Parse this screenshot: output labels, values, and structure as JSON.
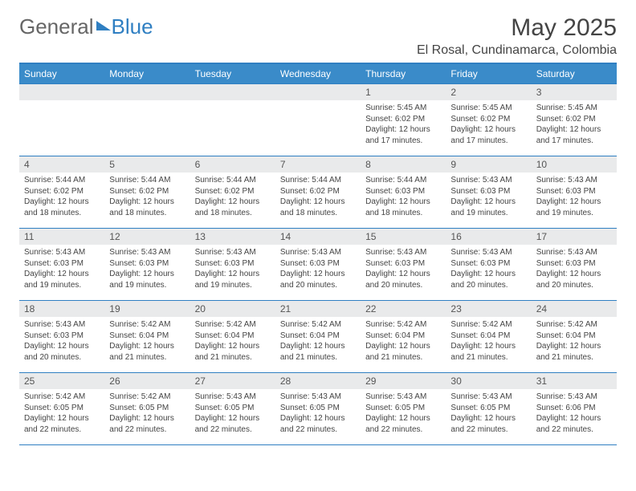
{
  "brand": {
    "part1": "General",
    "part2": "Blue"
  },
  "title": "May 2025",
  "location": "El Rosal, Cundinamarca, Colombia",
  "colors": {
    "header_bg": "#3a8bc9",
    "header_rule": "#2f7fc2",
    "daynum_bg": "#e9eaeb",
    "text": "#444444"
  },
  "weekdays": [
    "Sunday",
    "Monday",
    "Tuesday",
    "Wednesday",
    "Thursday",
    "Friday",
    "Saturday"
  ],
  "weeks": [
    [
      null,
      null,
      null,
      null,
      {
        "n": "1",
        "sr": "5:45 AM",
        "ss": "6:02 PM",
        "dl": "12 hours and 17 minutes."
      },
      {
        "n": "2",
        "sr": "5:45 AM",
        "ss": "6:02 PM",
        "dl": "12 hours and 17 minutes."
      },
      {
        "n": "3",
        "sr": "5:45 AM",
        "ss": "6:02 PM",
        "dl": "12 hours and 17 minutes."
      }
    ],
    [
      {
        "n": "4",
        "sr": "5:44 AM",
        "ss": "6:02 PM",
        "dl": "12 hours and 18 minutes."
      },
      {
        "n": "5",
        "sr": "5:44 AM",
        "ss": "6:02 PM",
        "dl": "12 hours and 18 minutes."
      },
      {
        "n": "6",
        "sr": "5:44 AM",
        "ss": "6:02 PM",
        "dl": "12 hours and 18 minutes."
      },
      {
        "n": "7",
        "sr": "5:44 AM",
        "ss": "6:02 PM",
        "dl": "12 hours and 18 minutes."
      },
      {
        "n": "8",
        "sr": "5:44 AM",
        "ss": "6:03 PM",
        "dl": "12 hours and 18 minutes."
      },
      {
        "n": "9",
        "sr": "5:43 AM",
        "ss": "6:03 PM",
        "dl": "12 hours and 19 minutes."
      },
      {
        "n": "10",
        "sr": "5:43 AM",
        "ss": "6:03 PM",
        "dl": "12 hours and 19 minutes."
      }
    ],
    [
      {
        "n": "11",
        "sr": "5:43 AM",
        "ss": "6:03 PM",
        "dl": "12 hours and 19 minutes."
      },
      {
        "n": "12",
        "sr": "5:43 AM",
        "ss": "6:03 PM",
        "dl": "12 hours and 19 minutes."
      },
      {
        "n": "13",
        "sr": "5:43 AM",
        "ss": "6:03 PM",
        "dl": "12 hours and 19 minutes."
      },
      {
        "n": "14",
        "sr": "5:43 AM",
        "ss": "6:03 PM",
        "dl": "12 hours and 20 minutes."
      },
      {
        "n": "15",
        "sr": "5:43 AM",
        "ss": "6:03 PM",
        "dl": "12 hours and 20 minutes."
      },
      {
        "n": "16",
        "sr": "5:43 AM",
        "ss": "6:03 PM",
        "dl": "12 hours and 20 minutes."
      },
      {
        "n": "17",
        "sr": "5:43 AM",
        "ss": "6:03 PM",
        "dl": "12 hours and 20 minutes."
      }
    ],
    [
      {
        "n": "18",
        "sr": "5:43 AM",
        "ss": "6:03 PM",
        "dl": "12 hours and 20 minutes."
      },
      {
        "n": "19",
        "sr": "5:42 AM",
        "ss": "6:04 PM",
        "dl": "12 hours and 21 minutes."
      },
      {
        "n": "20",
        "sr": "5:42 AM",
        "ss": "6:04 PM",
        "dl": "12 hours and 21 minutes."
      },
      {
        "n": "21",
        "sr": "5:42 AM",
        "ss": "6:04 PM",
        "dl": "12 hours and 21 minutes."
      },
      {
        "n": "22",
        "sr": "5:42 AM",
        "ss": "6:04 PM",
        "dl": "12 hours and 21 minutes."
      },
      {
        "n": "23",
        "sr": "5:42 AM",
        "ss": "6:04 PM",
        "dl": "12 hours and 21 minutes."
      },
      {
        "n": "24",
        "sr": "5:42 AM",
        "ss": "6:04 PM",
        "dl": "12 hours and 21 minutes."
      }
    ],
    [
      {
        "n": "25",
        "sr": "5:42 AM",
        "ss": "6:05 PM",
        "dl": "12 hours and 22 minutes."
      },
      {
        "n": "26",
        "sr": "5:42 AM",
        "ss": "6:05 PM",
        "dl": "12 hours and 22 minutes."
      },
      {
        "n": "27",
        "sr": "5:43 AM",
        "ss": "6:05 PM",
        "dl": "12 hours and 22 minutes."
      },
      {
        "n": "28",
        "sr": "5:43 AM",
        "ss": "6:05 PM",
        "dl": "12 hours and 22 minutes."
      },
      {
        "n": "29",
        "sr": "5:43 AM",
        "ss": "6:05 PM",
        "dl": "12 hours and 22 minutes."
      },
      {
        "n": "30",
        "sr": "5:43 AM",
        "ss": "6:05 PM",
        "dl": "12 hours and 22 minutes."
      },
      {
        "n": "31",
        "sr": "5:43 AM",
        "ss": "6:06 PM",
        "dl": "12 hours and 22 minutes."
      }
    ]
  ],
  "labels": {
    "sunrise": "Sunrise: ",
    "sunset": "Sunset: ",
    "daylight": "Daylight: "
  }
}
